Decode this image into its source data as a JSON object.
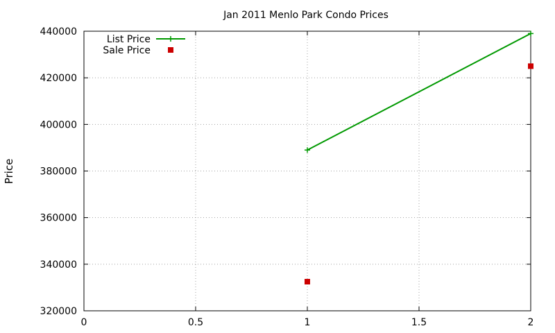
{
  "chart_data": {
    "type": "line",
    "title": "Jan 2011 Menlo Park Condo Prices",
    "xlabel": "",
    "ylabel": "Price",
    "xlim": [
      0,
      2
    ],
    "ylim": [
      320000,
      440000
    ],
    "x_ticks": [
      0,
      0.5,
      1,
      1.5,
      2
    ],
    "x_tick_labels": [
      "0",
      "0.5",
      "1",
      "1.5",
      "2"
    ],
    "y_ticks": [
      320000,
      340000,
      360000,
      380000,
      400000,
      420000,
      440000
    ],
    "y_tick_labels": [
      "320000",
      "340000",
      "360000",
      "380000",
      "400000",
      "420000",
      "440000"
    ],
    "grid": true,
    "legend_position": "top-left",
    "series": [
      {
        "name": "List Price",
        "style": "line-points",
        "marker": "plus",
        "color": "#009900",
        "x": [
          1,
          2
        ],
        "y": [
          389000,
          439000
        ]
      },
      {
        "name": "Sale Price",
        "style": "points",
        "marker": "square",
        "color": "#cc0000",
        "x": [
          1,
          2
        ],
        "y": [
          332500,
          425000
        ]
      }
    ]
  }
}
